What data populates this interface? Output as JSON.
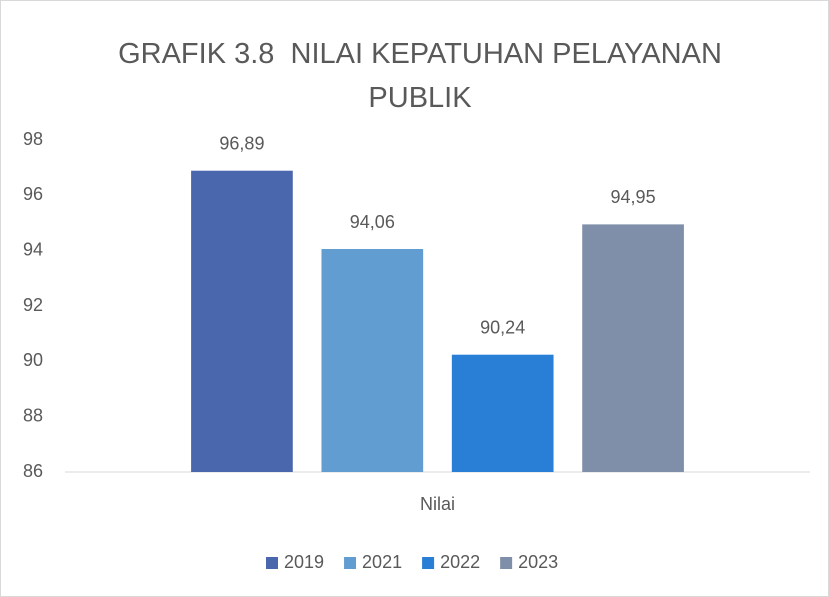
{
  "chart_data": {
    "type": "bar",
    "title": "GRAFIK 3.8  NILAI KEPATUHAN PELAYANAN PUBLIK",
    "categories": [
      "Nilai"
    ],
    "series": [
      {
        "name": "2019",
        "color": "#4a66ac",
        "values": [
          96.89
        ],
        "value_labels": [
          "96,89"
        ]
      },
      {
        "name": "2021",
        "color": "#629dd1",
        "values": [
          94.06
        ],
        "value_labels": [
          "94,06"
        ]
      },
      {
        "name": "2022",
        "color": "#297fd5",
        "values": [
          90.24
        ],
        "value_labels": [
          "90,24"
        ]
      },
      {
        "name": "2023",
        "color": "#7f8fa9",
        "values": [
          94.95
        ],
        "value_labels": [
          "94,95"
        ]
      }
    ],
    "ylim": [
      86,
      98
    ],
    "yticks": [
      86,
      88,
      90,
      92,
      94,
      96,
      98
    ],
    "grid": false,
    "legend": "bottom"
  }
}
